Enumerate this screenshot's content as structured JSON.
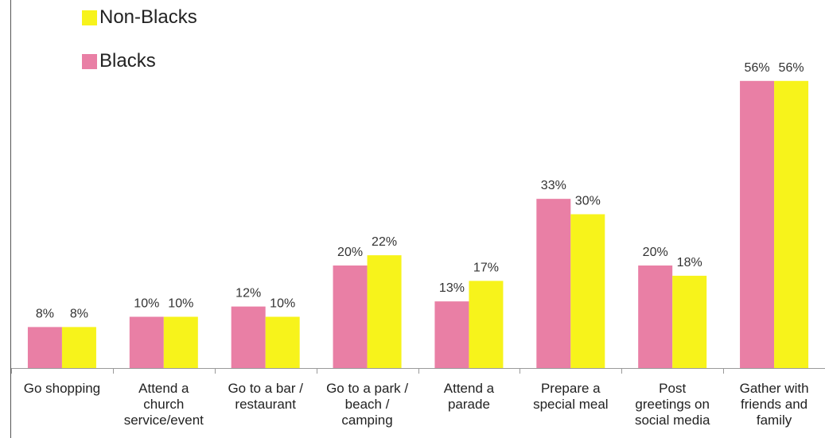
{
  "chart_data": {
    "type": "bar",
    "categories": [
      "Go shopping",
      "Attend a church service/event",
      "Go to a bar / restaurant",
      "Go to a park / beach / camping",
      "Attend a parade",
      "Prepare a special meal",
      "Post greetings on social media",
      "Gather with friends and family"
    ],
    "category_lines": [
      [
        "Go shopping"
      ],
      [
        "Attend a",
        "church",
        "service/event"
      ],
      [
        "Go to a bar /",
        "restaurant"
      ],
      [
        "Go to a park /",
        "beach /",
        "camping"
      ],
      [
        "Attend a",
        "parade"
      ],
      [
        "Prepare a",
        "special meal"
      ],
      [
        "Post",
        "greetings on",
        "social media"
      ],
      [
        "Gather with",
        "friends and",
        "family"
      ]
    ],
    "series": [
      {
        "name": "Blacks",
        "color": "#E97FA5",
        "values": [
          8,
          10,
          12,
          20,
          13,
          33,
          20,
          56
        ],
        "labels": [
          "8%",
          "10%",
          "12%",
          "20%",
          "13%",
          "33%",
          "20%",
          "56%"
        ]
      },
      {
        "name": "Non-Blacks",
        "color": "#F7F31B",
        "values": [
          8,
          10,
          10,
          22,
          17,
          30,
          18,
          56
        ],
        "labels": [
          "8%",
          "10%",
          "10%",
          "22%",
          "17%",
          "30%",
          "18%",
          "56%"
        ]
      }
    ],
    "legend": {
      "order": [
        "Non-Blacks",
        "Blacks"
      ],
      "placement": "top-left"
    },
    "ylim": [
      0,
      60
    ],
    "grid": false
  }
}
